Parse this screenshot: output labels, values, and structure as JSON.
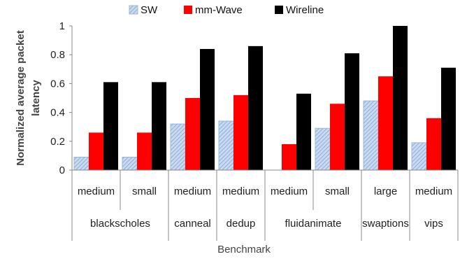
{
  "chart_data": {
    "type": "bar",
    "ylabel": "Normalized average packet latency",
    "xlabel": "Benchmark",
    "ylim": [
      0,
      1
    ],
    "yticks": [
      "0",
      "0.2",
      "0.4",
      "0.6",
      "0.8",
      "1"
    ],
    "grid": false,
    "legend": "top",
    "categories": [
      "medium",
      "small",
      "medium",
      "medium",
      "medium",
      "small",
      "large",
      "medium"
    ],
    "groups": [
      {
        "label": "blackscholes",
        "count": 2
      },
      {
        "label": "canneal",
        "count": 1
      },
      {
        "label": "dedup",
        "count": 1
      },
      {
        "label": "fluidanimate",
        "count": 2
      },
      {
        "label": "swaptions",
        "count": 1
      },
      {
        "label": "vips",
        "count": 1
      }
    ],
    "series": [
      {
        "name": "SW",
        "color": "#a9c4e6",
        "values": [
          0.09,
          0.09,
          0.32,
          0.34,
          0,
          0.29,
          0.48,
          0.19
        ]
      },
      {
        "name": "mm-Wave",
        "color": "#ff0000",
        "values": [
          0.26,
          0.26,
          0.5,
          0.52,
          0.18,
          0.46,
          0.65,
          0.36
        ]
      },
      {
        "name": "Wireline",
        "color": "#000000",
        "values": [
          0.61,
          0.61,
          0.84,
          0.86,
          0.53,
          0.81,
          1.0,
          0.71
        ]
      }
    ]
  }
}
